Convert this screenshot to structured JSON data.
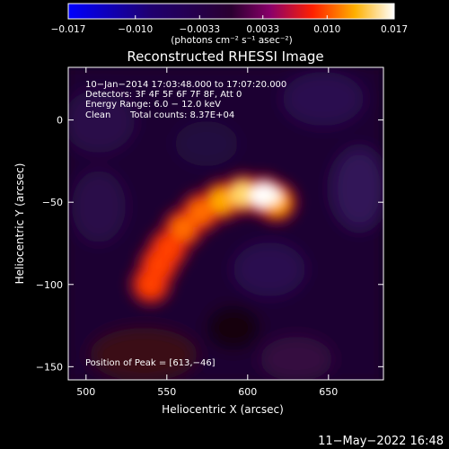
{
  "chart_data": {
    "type": "heatmap",
    "title": "Reconstructed RHESSI Image",
    "xlabel": "Heliocentric X (arcsec)",
    "ylabel": "Heliocentric Y (arcsec)",
    "xlim": [
      489,
      684
    ],
    "ylim": [
      -158,
      32
    ],
    "x_ticks": [
      500,
      550,
      600,
      650
    ],
    "y_ticks": [
      0,
      -50,
      -100,
      -150
    ],
    "x_tick_labels": [
      "500",
      "550",
      "600",
      "650"
    ],
    "y_tick_labels": [
      "0",
      "−50",
      "−100",
      "−150"
    ],
    "grid": false,
    "colorbar": {
      "range": [
        -0.017,
        0.017
      ],
      "ticks": [
        -0.017,
        -0.01,
        -0.0033,
        0.0033,
        0.01,
        0.017
      ],
      "tick_labels": [
        "−0.017",
        "−0.010",
        "−0.0033",
        "0.0033",
        "0.010",
        "0.017"
      ],
      "unit_label": "(photons cm⁻² s⁻¹ asec⁻²)"
    },
    "annotations": {
      "time_range": "10−Jan−2014 17:03:48.000 to 17:07:20.000",
      "detectors": "Detectors: 3F 4F 5F 6F 7F 8F, Att 0",
      "energy_range": "Energy Range: 6.0 − 12.0 keV",
      "clean": "Clean",
      "total_counts": "Total counts: 8.37E+04",
      "peak": "Position of Peak = [613,−46]"
    },
    "peak": {
      "x": 613,
      "y": -46
    },
    "source_ridge": [
      {
        "x": 540,
        "y": -100,
        "level": 0.55
      },
      {
        "x": 545,
        "y": -88,
        "level": 0.6
      },
      {
        "x": 551,
        "y": -78,
        "level": 0.62
      },
      {
        "x": 560,
        "y": -66,
        "level": 0.66
      },
      {
        "x": 571,
        "y": -56,
        "level": 0.72
      },
      {
        "x": 584,
        "y": -49,
        "level": 0.8
      },
      {
        "x": 597,
        "y": -45,
        "level": 0.9
      },
      {
        "x": 610,
        "y": -46,
        "level": 1.0
      },
      {
        "x": 618,
        "y": -50,
        "level": 0.85
      }
    ]
  },
  "footer": {
    "timestamp": "11−May−2022 16:48"
  }
}
